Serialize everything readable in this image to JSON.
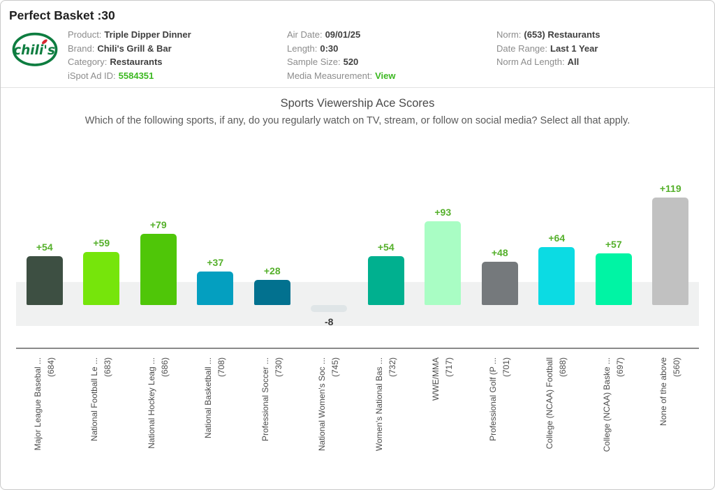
{
  "page": {
    "title": "Perfect Basket :30"
  },
  "logo": {
    "brand": "chili's",
    "ring_color": "#0e7d40",
    "pepper_color": "#d7282f"
  },
  "info": {
    "col1": [
      {
        "label": "Product:",
        "value": "Triple Dipper Dinner"
      },
      {
        "label": "Brand:",
        "value": "Chili's Grill & Bar"
      },
      {
        "label": "Category:",
        "value": "Restaurants"
      },
      {
        "label": "iSpot Ad ID:",
        "value": "5584351"
      }
    ],
    "col2": [
      {
        "label": "Air Date:",
        "value": "09/01/25"
      },
      {
        "label": "Length:",
        "value": "0:30"
      },
      {
        "label": "Sample Size:",
        "value": "520"
      },
      {
        "label": "Media Measurement:",
        "value": "View"
      }
    ],
    "col3": [
      {
        "label": "Norm:",
        "value": "(653) Restaurants"
      },
      {
        "label": "Date Range:",
        "value": "Last 1 Year"
      },
      {
        "label": "Norm Ad Length:",
        "value": "All"
      }
    ]
  },
  "chart_data": {
    "type": "bar",
    "title": "Sports Viewership Ace Scores",
    "subtitle": "Which of the following sports, if any, do you regularly watch on TV, stream, or follow on social media? Select all that apply.",
    "categories": [
      {
        "name": "Major League Basebal ...",
        "count": "(684)"
      },
      {
        "name": "National Football Le ...",
        "count": "(683)"
      },
      {
        "name": "National Hockey Leag ...",
        "count": "(686)"
      },
      {
        "name": "National Basketball ...",
        "count": "(708)"
      },
      {
        "name": "Professional Soccer ...",
        "count": "(730)"
      },
      {
        "name": "National Women's Soc ...",
        "count": "(745)"
      },
      {
        "name": "Women's National Bas ...",
        "count": "(732)"
      },
      {
        "name": "WWE/MMA",
        "count": "(717)"
      },
      {
        "name": "Professional Golf (P ...",
        "count": "(701)"
      },
      {
        "name": "College (NCAA) Football",
        "count": "(688)"
      },
      {
        "name": "College (NCAA) Baske ...",
        "count": "(697)"
      },
      {
        "name": "None of the above",
        "count": "(560)"
      }
    ],
    "values": [
      54,
      59,
      79,
      37,
      28,
      -8,
      54,
      93,
      48,
      64,
      57,
      119
    ],
    "value_labels": [
      "+54",
      "+59",
      "+79",
      "+37",
      "+28",
      "-8",
      "+54",
      "+93",
      "+48",
      "+64",
      "+57",
      "+119"
    ],
    "bar_colors": [
      "#3d4f42",
      "#76e50b",
      "#4fc608",
      "#049fc0",
      "#02718f",
      "#dfe5e7",
      "#00b08f",
      "#a9fdc4",
      "#75797c",
      "#0cdbe3",
      "#00f4a4",
      "#c1c1c1"
    ],
    "positive_label_color": "#55b02b",
    "negative_label_color": "#3a3a3a",
    "band_range": [
      -23,
      26
    ],
    "band_color": "#f0f1f1",
    "xlabel": "",
    "ylabel": "",
    "ylim": [
      -47,
      145
    ],
    "grid": false,
    "legend": "none"
  }
}
